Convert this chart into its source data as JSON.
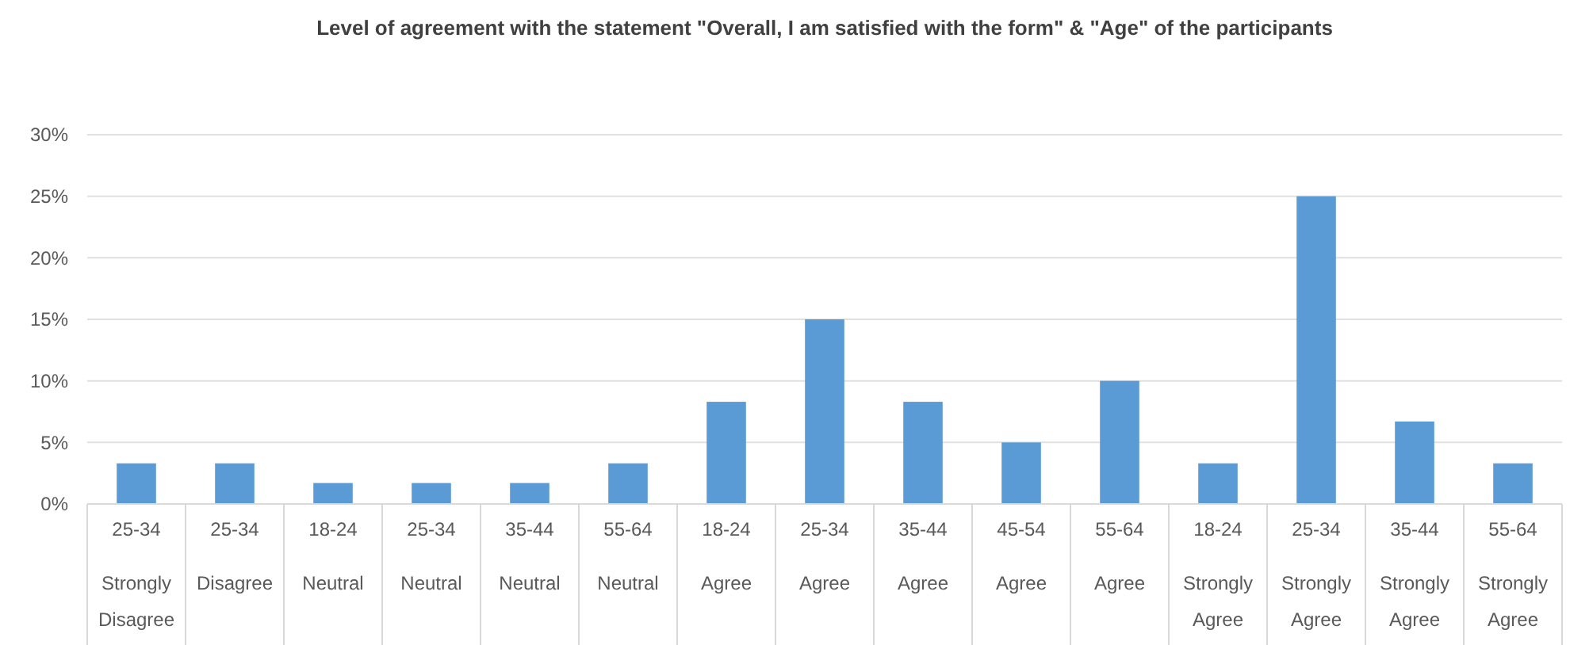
{
  "chart_data": {
    "type": "bar",
    "title": "Level of agreement with the statement \"Overall, I am satisfied with the form\" & \"Age\" of the participants",
    "categories": [
      "25-34\nStrongly Disagree",
      "25-34\nDisagree",
      "18-24\nNeutral",
      "25-34\nNeutral",
      "35-44\nNeutral",
      "55-64\nNeutral",
      "18-24\nAgree",
      "25-34\nAgree",
      "35-44\nAgree",
      "45-54\nAgree",
      "55-64\nAgree",
      "18-24\nStrongly Agree",
      "25-34\nStrongly Agree",
      "35-44\nStrongly Agree",
      "55-64\nStrongly Agree"
    ],
    "values": [
      3.3,
      3.3,
      1.7,
      1.7,
      1.7,
      3.3,
      8.3,
      15,
      8.3,
      5,
      10,
      3.3,
      25,
      6.7,
      3.3
    ],
    "color": "#5b9bd5",
    "ylim": [
      0,
      30
    ],
    "yticks": [
      {
        "value": 0,
        "label": "0%"
      },
      {
        "value": 5,
        "label": "5%"
      },
      {
        "value": 10,
        "label": "10%"
      },
      {
        "value": 15,
        "label": "15%"
      },
      {
        "value": 20,
        "label": "20%"
      },
      {
        "value": 25,
        "label": "25%"
      },
      {
        "value": 30,
        "label": "30%"
      }
    ],
    "grid": "y"
  }
}
